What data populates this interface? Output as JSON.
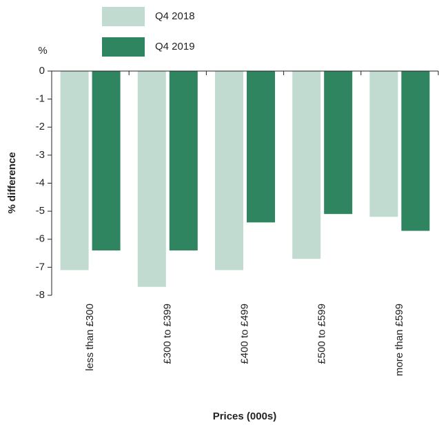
{
  "chart_data": {
    "type": "bar",
    "y_unit": "%",
    "y_title": "% difference",
    "x_title": "Prices (000s)",
    "categories": [
      "less than £300",
      "£300 to £399",
      "£400 to £499",
      "£500 to £599",
      "more than £599"
    ],
    "series": [
      {
        "name": "Q4 2018",
        "color": "#c2dbd0",
        "values": [
          -7.1,
          -7.7,
          -7.1,
          -6.7,
          -5.2
        ]
      },
      {
        "name": "Q4 2019",
        "color": "#2e8560",
        "values": [
          -6.4,
          -6.4,
          -5.4,
          -5.1,
          -5.7
        ]
      }
    ],
    "ylim": [
      -8,
      0
    ],
    "yticks": [
      0,
      -1,
      -2,
      -3,
      -4,
      -5,
      -6,
      -7,
      -8
    ]
  }
}
